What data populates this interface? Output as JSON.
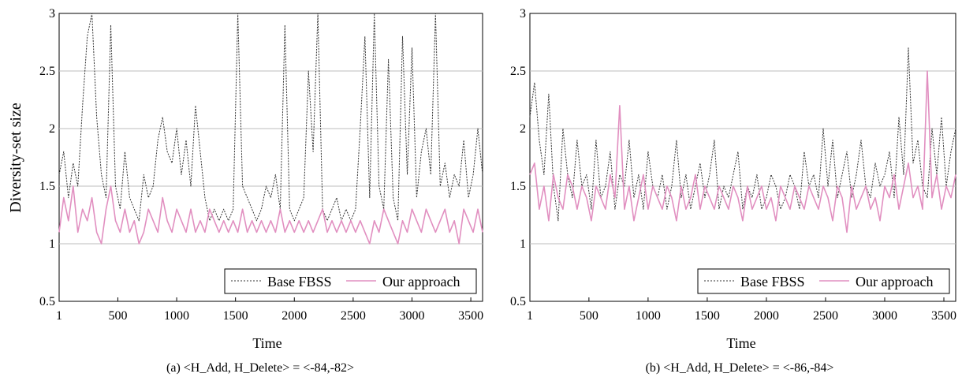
{
  "chart_data": [
    {
      "type": "line",
      "caption": "(a) <H_Add, H_Delete> = <-84,-82>",
      "xlabel": "Time",
      "ylabel": "Diversity-set size",
      "xlim": [
        1,
        3600
      ],
      "ylim": [
        0.5,
        3
      ],
      "xticks": [
        "1",
        "500",
        "1000",
        "1500",
        "2000",
        "2500",
        "3000",
        "3500"
      ],
      "yticks": [
        "0.5",
        "1",
        "1.5",
        "2",
        "2.5",
        "3"
      ],
      "grid": "horizontal",
      "legend_position": "bottom-right",
      "series": [
        {
          "name": "Base FBSS",
          "color": "#333333",
          "style": "dotted",
          "x": [
            1,
            40,
            80,
            120,
            160,
            200,
            240,
            280,
            320,
            360,
            400,
            440,
            480,
            520,
            560,
            600,
            640,
            680,
            720,
            760,
            800,
            840,
            880,
            920,
            960,
            1000,
            1040,
            1080,
            1120,
            1160,
            1200,
            1240,
            1280,
            1320,
            1360,
            1400,
            1440,
            1480,
            1520,
            1560,
            1600,
            1640,
            1680,
            1720,
            1760,
            1800,
            1840,
            1880,
            1920,
            1960,
            2000,
            2040,
            2080,
            2120,
            2160,
            2200,
            2240,
            2280,
            2320,
            2360,
            2400,
            2440,
            2480,
            2520,
            2560,
            2600,
            2640,
            2680,
            2720,
            2760,
            2800,
            2840,
            2880,
            2920,
            2960,
            3000,
            3040,
            3080,
            3120,
            3160,
            3200,
            3240,
            3280,
            3320,
            3360,
            3400,
            3440,
            3480,
            3520,
            3560,
            3600
          ],
          "values": [
            1.6,
            1.8,
            1.4,
            1.7,
            1.5,
            2.2,
            2.8,
            3.0,
            2.1,
            1.6,
            1.4,
            2.9,
            1.5,
            1.3,
            1.8,
            1.4,
            1.3,
            1.2,
            1.6,
            1.4,
            1.5,
            1.9,
            2.1,
            1.8,
            1.7,
            2.0,
            1.6,
            1.9,
            1.5,
            2.2,
            1.8,
            1.4,
            1.2,
            1.3,
            1.2,
            1.3,
            1.2,
            1.3,
            3.0,
            1.5,
            1.4,
            1.3,
            1.2,
            1.3,
            1.5,
            1.4,
            1.6,
            1.3,
            2.9,
            1.3,
            1.2,
            1.3,
            1.4,
            2.5,
            1.8,
            3.0,
            1.3,
            1.2,
            1.3,
            1.4,
            1.2,
            1.3,
            1.2,
            1.3,
            2.0,
            2.8,
            1.4,
            3.0,
            1.5,
            1.3,
            2.6,
            1.4,
            1.2,
            2.8,
            1.6,
            2.7,
            1.4,
            1.8,
            2.0,
            1.6,
            3.0,
            1.5,
            1.7,
            1.4,
            1.6,
            1.5,
            1.9,
            1.4,
            1.6,
            2.0,
            1.6
          ]
        },
        {
          "name": "Our approach",
          "color": "#e18fc0",
          "style": "solid",
          "x": [
            1,
            40,
            80,
            120,
            160,
            200,
            240,
            280,
            320,
            360,
            400,
            440,
            480,
            520,
            560,
            600,
            640,
            680,
            720,
            760,
            800,
            840,
            880,
            920,
            960,
            1000,
            1040,
            1080,
            1120,
            1160,
            1200,
            1240,
            1280,
            1320,
            1360,
            1400,
            1440,
            1480,
            1520,
            1560,
            1600,
            1640,
            1680,
            1720,
            1760,
            1800,
            1840,
            1880,
            1920,
            1960,
            2000,
            2040,
            2080,
            2120,
            2160,
            2200,
            2240,
            2280,
            2320,
            2360,
            2400,
            2440,
            2480,
            2520,
            2560,
            2600,
            2640,
            2680,
            2720,
            2760,
            2800,
            2840,
            2880,
            2920,
            2960,
            3000,
            3040,
            3080,
            3120,
            3160,
            3200,
            3240,
            3280,
            3320,
            3360,
            3400,
            3440,
            3480,
            3520,
            3560,
            3600
          ],
          "values": [
            1.1,
            1.4,
            1.2,
            1.5,
            1.1,
            1.3,
            1.2,
            1.4,
            1.1,
            1.0,
            1.3,
            1.5,
            1.2,
            1.1,
            1.3,
            1.1,
            1.2,
            1.0,
            1.1,
            1.3,
            1.2,
            1.1,
            1.4,
            1.2,
            1.1,
            1.3,
            1.2,
            1.1,
            1.3,
            1.1,
            1.2,
            1.1,
            1.3,
            1.2,
            1.1,
            1.2,
            1.1,
            1.2,
            1.1,
            1.3,
            1.1,
            1.2,
            1.1,
            1.2,
            1.1,
            1.2,
            1.1,
            1.3,
            1.1,
            1.2,
            1.1,
            1.2,
            1.1,
            1.2,
            1.1,
            1.2,
            1.3,
            1.1,
            1.2,
            1.1,
            1.2,
            1.1,
            1.2,
            1.1,
            1.2,
            1.1,
            1.0,
            1.2,
            1.1,
            1.3,
            1.2,
            1.1,
            1.0,
            1.2,
            1.1,
            1.3,
            1.2,
            1.1,
            1.3,
            1.2,
            1.1,
            1.2,
            1.3,
            1.1,
            1.2,
            1.0,
            1.3,
            1.2,
            1.1,
            1.3,
            1.1
          ]
        }
      ]
    },
    {
      "type": "line",
      "caption": "(b) <H_Add, H_Delete> = <-86,-84>",
      "xlabel": "Time",
      "ylabel": "",
      "xlim": [
        1,
        3600
      ],
      "ylim": [
        0.5,
        3
      ],
      "xticks": [
        "1",
        "500",
        "1000",
        "1500",
        "2000",
        "2500",
        "3000",
        "3500"
      ],
      "yticks": [
        "0.5",
        "1",
        "1.5",
        "2",
        "2.5",
        "3"
      ],
      "grid": "horizontal",
      "legend_position": "bottom-right",
      "series": [
        {
          "name": "Base FBSS",
          "color": "#333333",
          "style": "dotted",
          "x": [
            1,
            40,
            80,
            120,
            160,
            200,
            240,
            280,
            320,
            360,
            400,
            440,
            480,
            520,
            560,
            600,
            640,
            680,
            720,
            760,
            800,
            840,
            880,
            920,
            960,
            1000,
            1040,
            1080,
            1120,
            1160,
            1200,
            1240,
            1280,
            1320,
            1360,
            1400,
            1440,
            1480,
            1520,
            1560,
            1600,
            1640,
            1680,
            1720,
            1760,
            1800,
            1840,
            1880,
            1920,
            1960,
            2000,
            2040,
            2080,
            2120,
            2160,
            2200,
            2240,
            2280,
            2320,
            2360,
            2400,
            2440,
            2480,
            2520,
            2560,
            2600,
            2640,
            2680,
            2720,
            2760,
            2800,
            2840,
            2880,
            2920,
            2960,
            3000,
            3040,
            3080,
            3120,
            3160,
            3200,
            3240,
            3280,
            3320,
            3360,
            3400,
            3440,
            3480,
            3520,
            3560,
            3600
          ],
          "values": [
            2.1,
            2.4,
            1.9,
            1.6,
            2.3,
            1.5,
            1.2,
            2.0,
            1.6,
            1.4,
            1.9,
            1.5,
            1.6,
            1.3,
            1.9,
            1.4,
            1.5,
            1.8,
            1.3,
            1.6,
            1.5,
            1.9,
            1.4,
            1.6,
            1.3,
            1.8,
            1.5,
            1.4,
            1.6,
            1.3,
            1.5,
            1.9,
            1.4,
            1.6,
            1.3,
            1.5,
            1.7,
            1.4,
            1.6,
            1.9,
            1.3,
            1.5,
            1.4,
            1.6,
            1.8,
            1.3,
            1.5,
            1.4,
            1.6,
            1.3,
            1.4,
            1.6,
            1.5,
            1.3,
            1.4,
            1.6,
            1.5,
            1.3,
            1.8,
            1.5,
            1.6,
            1.4,
            2.0,
            1.5,
            1.9,
            1.4,
            1.6,
            1.8,
            1.4,
            1.6,
            1.9,
            1.5,
            1.4,
            1.7,
            1.5,
            1.6,
            1.8,
            1.4,
            2.1,
            1.6,
            2.7,
            1.7,
            1.9,
            1.5,
            1.4,
            2.0,
            1.6,
            2.1,
            1.5,
            1.8,
            2.0
          ]
        },
        {
          "name": "Our approach",
          "color": "#e18fc0",
          "style": "solid",
          "x": [
            1,
            40,
            80,
            120,
            160,
            200,
            240,
            280,
            320,
            360,
            400,
            440,
            480,
            520,
            560,
            600,
            640,
            680,
            720,
            760,
            800,
            840,
            880,
            920,
            960,
            1000,
            1040,
            1080,
            1120,
            1160,
            1200,
            1240,
            1280,
            1320,
            1360,
            1400,
            1440,
            1480,
            1520,
            1560,
            1600,
            1640,
            1680,
            1720,
            1760,
            1800,
            1840,
            1880,
            1920,
            1960,
            2000,
            2040,
            2080,
            2120,
            2160,
            2200,
            2240,
            2280,
            2320,
            2360,
            2400,
            2440,
            2480,
            2520,
            2560,
            2600,
            2640,
            2680,
            2720,
            2760,
            2800,
            2840,
            2880,
            2920,
            2960,
            3000,
            3040,
            3080,
            3120,
            3160,
            3200,
            3240,
            3280,
            3320,
            3360,
            3400,
            3440,
            3480,
            3520,
            3560,
            3600
          ],
          "values": [
            1.6,
            1.7,
            1.3,
            1.5,
            1.2,
            1.6,
            1.4,
            1.3,
            1.6,
            1.5,
            1.3,
            1.5,
            1.4,
            1.2,
            1.5,
            1.4,
            1.3,
            1.6,
            1.4,
            2.2,
            1.3,
            1.5,
            1.2,
            1.4,
            1.6,
            1.3,
            1.5,
            1.4,
            1.3,
            1.5,
            1.4,
            1.2,
            1.5,
            1.3,
            1.4,
            1.6,
            1.3,
            1.5,
            1.4,
            1.3,
            1.5,
            1.4,
            1.3,
            1.5,
            1.4,
            1.2,
            1.5,
            1.3,
            1.4,
            1.5,
            1.3,
            1.4,
            1.2,
            1.5,
            1.4,
            1.3,
            1.5,
            1.4,
            1.3,
            1.5,
            1.4,
            1.3,
            1.5,
            1.4,
            1.2,
            1.5,
            1.4,
            1.1,
            1.5,
            1.3,
            1.4,
            1.5,
            1.3,
            1.4,
            1.2,
            1.5,
            1.4,
            1.6,
            1.3,
            1.5,
            1.7,
            1.4,
            1.5,
            1.3,
            2.5,
            1.4,
            1.6,
            1.3,
            1.5,
            1.4,
            1.6
          ]
        }
      ]
    }
  ]
}
